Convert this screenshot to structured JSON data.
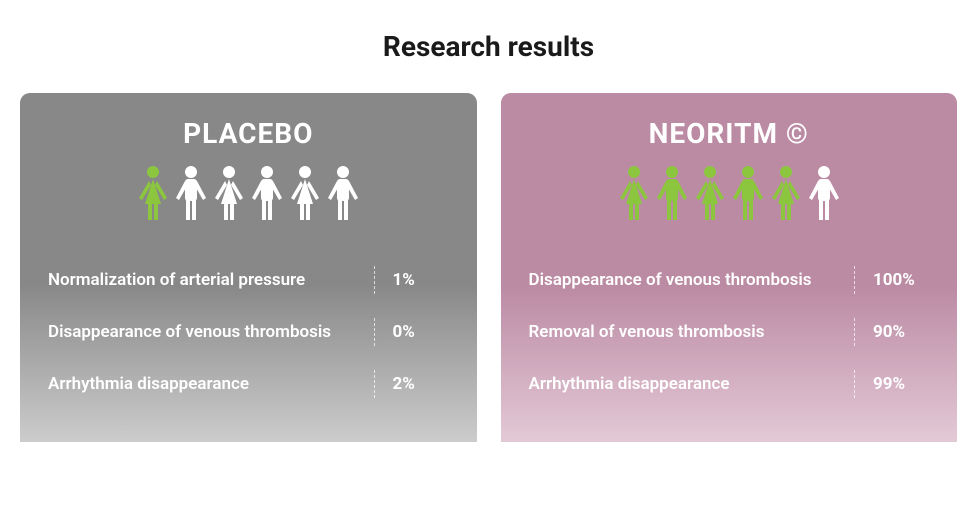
{
  "title": "Research results",
  "icon_colors": {
    "highlight": "#8cc63f",
    "normal": "#ffffff"
  },
  "panels": [
    {
      "header": "PLACEBO",
      "bg_gradient_top": "#888888",
      "bg_gradient_bottom": "#cccccc",
      "people": [
        {
          "type": "female",
          "highlighted": true
        },
        {
          "type": "male",
          "highlighted": false
        },
        {
          "type": "female",
          "highlighted": false
        },
        {
          "type": "male",
          "highlighted": false
        },
        {
          "type": "female",
          "highlighted": false
        },
        {
          "type": "male",
          "highlighted": false
        }
      ],
      "rows": [
        {
          "label": "Normalization of arterial pressure",
          "value": "1%"
        },
        {
          "label": "Disappearance of venous thrombosis",
          "value": "0%"
        },
        {
          "label": "Arrhythmia disappearance",
          "value": "2%"
        }
      ]
    },
    {
      "header": "NEORITM ©",
      "bg_gradient_top": "#bb8aa3",
      "bg_gradient_bottom": "#e3c9d6",
      "people": [
        {
          "type": "female",
          "highlighted": true
        },
        {
          "type": "male",
          "highlighted": true
        },
        {
          "type": "female",
          "highlighted": true
        },
        {
          "type": "male",
          "highlighted": true
        },
        {
          "type": "female",
          "highlighted": true
        },
        {
          "type": "male",
          "highlighted": false
        }
      ],
      "rows": [
        {
          "label": "Disappearance of venous thrombosis",
          "value": "100%"
        },
        {
          "label": "Removal of venous thrombosis",
          "value": "90%"
        },
        {
          "label": "Arrhythmia disappearance",
          "value": "99%"
        }
      ]
    }
  ]
}
